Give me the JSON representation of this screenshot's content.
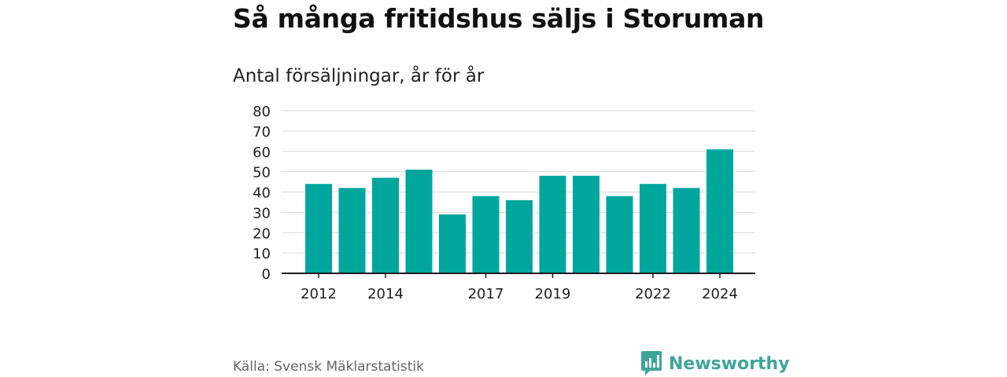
{
  "header": {
    "title": "Så många fritidshus säljs i Storuman",
    "subtitle": "Antal försäljningar, år för år"
  },
  "footer": {
    "source": "Källa: Svensk Mäklarstatistik",
    "brand": "Newsworthy"
  },
  "colors": {
    "bar": "#00a69c",
    "brand": "#3fa597",
    "grid": "#d8d8d8",
    "axis": "#1a1a1a"
  },
  "chart_data": {
    "type": "bar",
    "title": "Så många fritidshus säljs i Storuman",
    "subtitle": "Antal försäljningar, år för år",
    "categories": [
      "2012",
      "2013",
      "2014",
      "2015",
      "2016",
      "2017",
      "2018",
      "2019",
      "2020",
      "2021",
      "2022",
      "2023",
      "2024"
    ],
    "values": [
      44,
      42,
      47,
      51,
      29,
      38,
      36,
      48,
      48,
      38,
      44,
      42,
      61
    ],
    "x_tick_labels": [
      "2012",
      "2014",
      "2017",
      "2019",
      "2022",
      "2024"
    ],
    "y_ticks": [
      0,
      10,
      20,
      30,
      40,
      50,
      60,
      70,
      80
    ],
    "ylim": [
      0,
      80
    ],
    "grid": true,
    "legend": "none"
  }
}
